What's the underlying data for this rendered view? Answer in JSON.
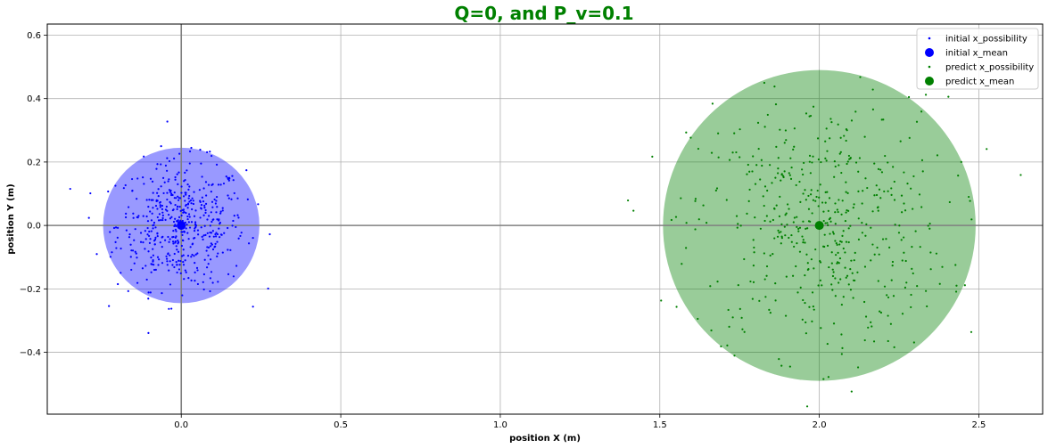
{
  "chart_data": {
    "type": "scatter",
    "title": "Q=0, and P_v=0.1",
    "title_color": "#008000",
    "xlabel": "position X (m)",
    "ylabel": "position Y (m)",
    "xlim": [
      -0.42,
      2.7
    ],
    "ylim": [
      -0.595,
      0.635
    ],
    "x_ticks": [
      0.0,
      0.5,
      1.0,
      1.5,
      2.0,
      2.5
    ],
    "x_tick_labels": [
      "0.0",
      "0.5",
      "1.0",
      "1.5",
      "2.0",
      "2.5"
    ],
    "y_ticks": [
      -0.4,
      -0.2,
      0.0,
      0.2,
      0.4,
      0.6
    ],
    "y_tick_labels": [
      "−0.4",
      "−0.2",
      "0.0",
      "0.2",
      "0.4",
      "0.6"
    ],
    "grid": true,
    "legend_position": "top-right",
    "reference_lines": {
      "x": 0.0,
      "y": 0.0,
      "color": "#808080"
    },
    "ellipses": [
      {
        "name": "initial covariance",
        "cx": 0.0,
        "cy": 0.0,
        "rx": 0.245,
        "ry": 0.245,
        "color": "#0000ff",
        "opacity": 0.4
      },
      {
        "name": "predict covariance",
        "cx": 2.0,
        "cy": 0.0,
        "rx": 0.49,
        "ry": 0.49,
        "color": "#008000",
        "opacity": 0.4
      }
    ],
    "series": [
      {
        "name": "initial x_possibility",
        "marker": "dot",
        "color": "#0000ff",
        "center": [
          0.0,
          0.0
        ],
        "std": [
          0.1,
          0.1
        ],
        "n_points": 500
      },
      {
        "name": "initial x_mean",
        "marker": "big-circle",
        "color": "#0000ff",
        "x": [
          0.0
        ],
        "y": [
          0.0
        ]
      },
      {
        "name": "predict x_possibility",
        "marker": "dot",
        "color": "#008000",
        "center": [
          2.0,
          0.0
        ],
        "std": [
          0.2,
          0.2
        ],
        "n_points": 500
      },
      {
        "name": "predict x_mean",
        "marker": "big-circle",
        "color": "#008000",
        "x": [
          2.0
        ],
        "y": [
          0.0
        ]
      }
    ]
  }
}
